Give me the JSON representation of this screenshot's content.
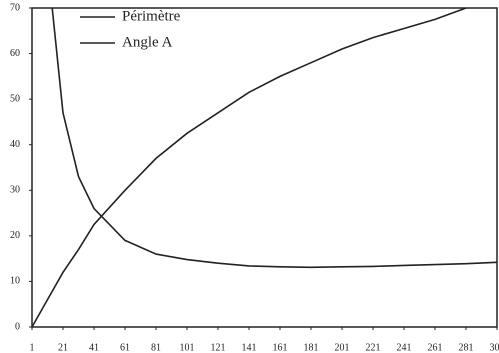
{
  "chart_data": {
    "type": "line",
    "x": [
      1,
      11,
      21,
      31,
      41,
      61,
      81,
      101,
      121,
      141,
      161,
      181,
      201,
      221,
      241,
      261,
      281,
      301
    ],
    "series": [
      {
        "name": "Périmètre",
        "color": "#222222",
        "values": [
          null,
          80,
          47,
          33,
          26,
          19,
          16,
          14.8,
          14,
          13.4,
          13.2,
          13.1,
          13.2,
          13.3,
          13.5,
          13.7,
          13.9,
          14.2
        ]
      },
      {
        "name": "Angle A",
        "color": "#222222",
        "values": [
          0,
          6,
          12,
          17,
          22.5,
          30,
          37,
          42.5,
          47,
          51.5,
          55,
          58,
          61,
          63.5,
          65.5,
          67.5,
          70,
          71.5
        ]
      }
    ],
    "xlim": [
      1,
      301
    ],
    "xticks": [
      1,
      21,
      41,
      61,
      81,
      101,
      121,
      141,
      161,
      181,
      201,
      221,
      241,
      261,
      281,
      301
    ],
    "ylim": [
      0,
      70
    ],
    "yticks": [
      0,
      10,
      20,
      30,
      40,
      50,
      60,
      70
    ],
    "legend": "top-left"
  }
}
